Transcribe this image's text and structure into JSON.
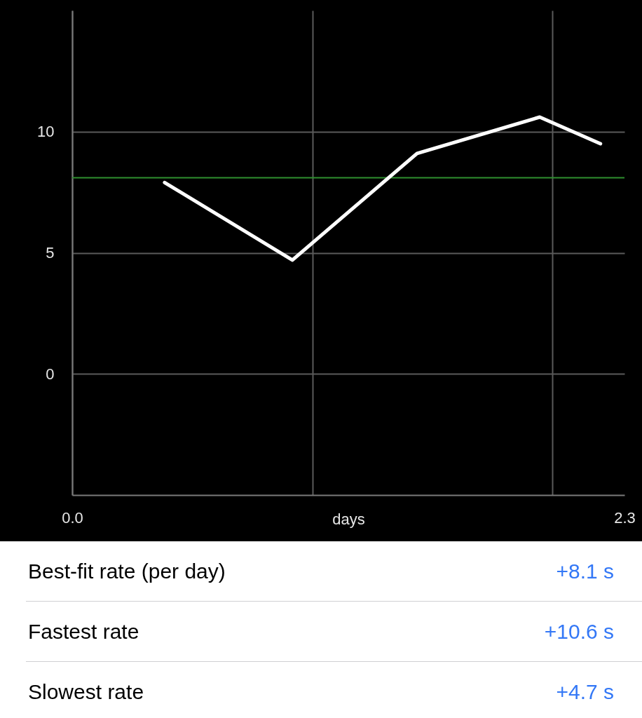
{
  "chart_data": {
    "type": "line",
    "xlabel": "days",
    "x": [
      0.385,
      0.917,
      1.436,
      1.947,
      2.2
    ],
    "series": [
      {
        "color": "#ffffff",
        "values": [
          7.9,
          4.7,
          9.1,
          10.6,
          9.5
        ]
      }
    ],
    "xlim": [
      0,
      2.3
    ],
    "xticks": [
      {
        "value": 0,
        "label": "0.0"
      },
      {
        "value": 1,
        "label": null
      },
      {
        "value": 2,
        "label": null
      },
      {
        "value": 2.3,
        "label": "2.3"
      }
    ],
    "ylim": [
      -5,
      15
    ],
    "yticks": [
      0,
      5,
      10
    ],
    "grid": true,
    "marker": "none",
    "line_style": "solid",
    "ref_lines": [
      {
        "axis": "y",
        "value": 8.1,
        "color": "#2f8f2f"
      }
    ],
    "annotations": [
      "Best-fit rate (per day)",
      "+8.1 s",
      "Fastest rate",
      "+10.6 s",
      "Slowest rate",
      "+4.7 s"
    ]
  }
}
